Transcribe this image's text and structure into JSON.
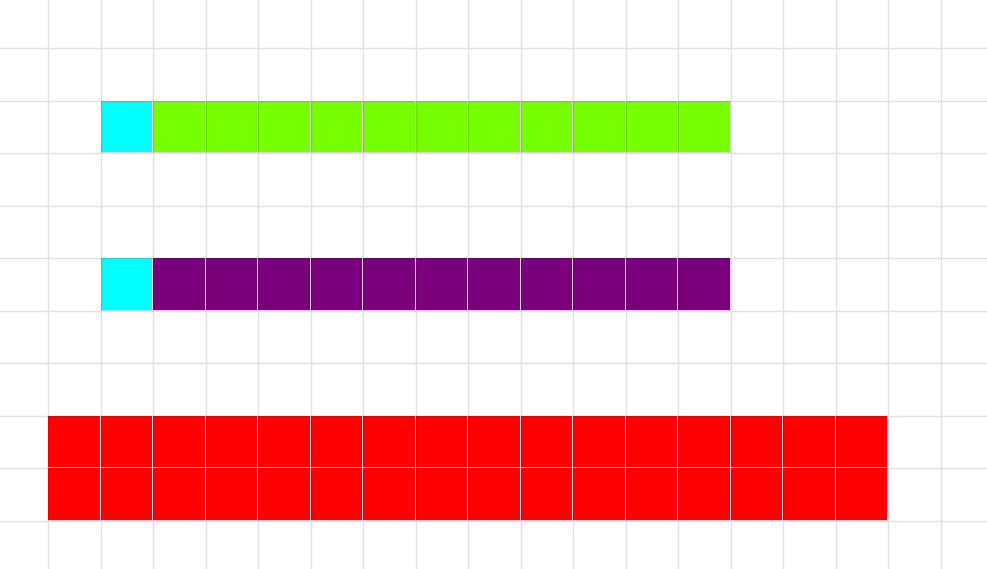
{
  "board": {
    "colors": {
      "background": "#ffffff",
      "grid_line": "#e2e2e2",
      "cell_divider": "#e6d6e6",
      "cyan": "#00ffff",
      "green": "#77ff00",
      "purple": "#7b007b",
      "red": "#ff0000"
    },
    "blocks": [
      {
        "name": "cyan-cell-top",
        "color": "cyan",
        "cells": [
          [
            2,
            2
          ]
        ]
      },
      {
        "name": "green-bar",
        "color": "green",
        "cells": [
          [
            2,
            3
          ],
          [
            2,
            4
          ],
          [
            2,
            5
          ],
          [
            2,
            6
          ],
          [
            2,
            7
          ],
          [
            2,
            8
          ],
          [
            2,
            9
          ],
          [
            2,
            10
          ],
          [
            2,
            11
          ],
          [
            2,
            12
          ],
          [
            2,
            13
          ]
        ]
      },
      {
        "name": "cyan-cell-middle",
        "color": "cyan",
        "cells": [
          [
            5,
            2
          ]
        ]
      },
      {
        "name": "purple-bar",
        "color": "purple",
        "cells": [
          [
            5,
            3
          ],
          [
            5,
            4
          ],
          [
            5,
            5
          ],
          [
            5,
            6
          ],
          [
            5,
            7
          ],
          [
            5,
            8
          ],
          [
            5,
            9
          ],
          [
            5,
            10
          ],
          [
            5,
            11
          ],
          [
            5,
            12
          ],
          [
            5,
            13
          ]
        ]
      },
      {
        "name": "red-block",
        "color": "red",
        "cells": [
          [
            8,
            1
          ],
          [
            8,
            2
          ],
          [
            8,
            3
          ],
          [
            8,
            4
          ],
          [
            8,
            5
          ],
          [
            8,
            6
          ],
          [
            8,
            7
          ],
          [
            8,
            8
          ],
          [
            8,
            9
          ],
          [
            8,
            10
          ],
          [
            8,
            11
          ],
          [
            8,
            12
          ],
          [
            8,
            13
          ],
          [
            8,
            14
          ],
          [
            8,
            15
          ],
          [
            8,
            16
          ],
          [
            9,
            1
          ],
          [
            9,
            2
          ],
          [
            9,
            3
          ],
          [
            9,
            4
          ],
          [
            9,
            5
          ],
          [
            9,
            6
          ],
          [
            9,
            7
          ],
          [
            9,
            8
          ],
          [
            9,
            9
          ],
          [
            9,
            10
          ],
          [
            9,
            11
          ],
          [
            9,
            12
          ],
          [
            9,
            13
          ],
          [
            9,
            14
          ],
          [
            9,
            15
          ],
          [
            9,
            16
          ]
        ]
      }
    ]
  }
}
